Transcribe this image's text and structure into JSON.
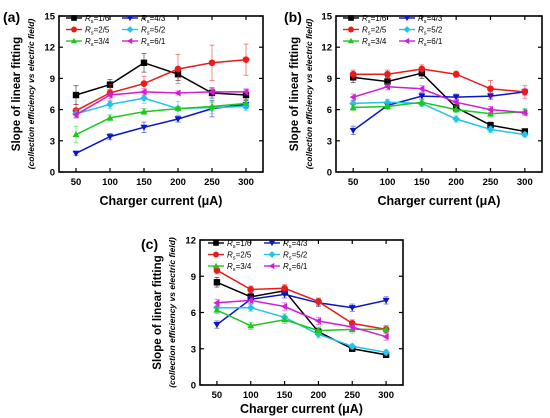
{
  "colors": {
    "Rs=1/6": "#000000",
    "Rs=4/3": "#0a14c8",
    "Rs=2/5": "#e81c1c",
    "Rs=5/2": "#22c4e8",
    "Rs=3/4": "#1ec81e",
    "Rs=6/1": "#d21ed2"
  },
  "markers": {
    "Rs=1/6": "square",
    "Rs=4/3": "triangle-down",
    "Rs=2/5": "circle",
    "Rs=5/2": "diamond",
    "Rs=3/4": "triangle-up",
    "Rs=6/1": "triangle-left"
  },
  "chart_data": [
    {
      "panel": "(a)",
      "type": "line",
      "xlabel": "Charger current (μA)",
      "ylabel": "Slope of linear fitting",
      "ylabel_sub": "(collection efficiency vs electric field)",
      "x": [
        50,
        100,
        150,
        200,
        250,
        300
      ],
      "xlim": [
        25,
        325
      ],
      "ylim": [
        0,
        15
      ],
      "yticks": [
        0,
        3,
        6,
        9,
        12,
        15
      ],
      "legend": [
        [
          "Rs=1/6",
          "Rs=4/3"
        ],
        [
          "Rs=2/5",
          "Rs=5/2"
        ],
        [
          "Rs=3/4",
          "Rs=6/1"
        ]
      ],
      "series": [
        {
          "name": "Rs=1/6",
          "values": [
            7.4,
            8.4,
            10.5,
            9.4,
            7.6,
            7.4
          ],
          "errors": [
            0.9,
            0.5,
            0.9,
            0.6,
            0.5,
            0.5
          ]
        },
        {
          "name": "Rs=4/3",
          "values": [
            1.8,
            3.4,
            4.3,
            5.1,
            6.1,
            6.5
          ],
          "errors": [
            0.2,
            0.3,
            0.5,
            0.3,
            0.8,
            0.4
          ]
        },
        {
          "name": "Rs=2/5",
          "values": [
            5.9,
            7.6,
            8.5,
            9.9,
            10.5,
            10.8
          ],
          "errors": [
            0.6,
            0.8,
            0.7,
            1.4,
            1.7,
            1.5
          ]
        },
        {
          "name": "Rs=5/2",
          "values": [
            5.6,
            6.5,
            7.1,
            6.1,
            6.2,
            6.3
          ],
          "errors": [
            0.4,
            0.4,
            0.5,
            0.7,
            0.6,
            0.4
          ]
        },
        {
          "name": "Rs=3/4",
          "values": [
            3.6,
            5.2,
            5.8,
            6.1,
            6.3,
            6.6
          ],
          "errors": [
            0.8,
            0.3,
            0.3,
            0.2,
            0.4,
            0.4
          ]
        },
        {
          "name": "Rs=6/1",
          "values": [
            5.5,
            7.4,
            7.7,
            7.6,
            7.7,
            7.7
          ],
          "errors": [
            0.3,
            0.3,
            0.3,
            0.2,
            0.3,
            0.3
          ]
        }
      ]
    },
    {
      "panel": "(b)",
      "type": "line",
      "xlabel": "Charger current (μA)",
      "ylabel": "Slope of linear fitting",
      "ylabel_sub": "(collection efficiency vs electric field)",
      "x": [
        50,
        100,
        150,
        200,
        250,
        300
      ],
      "xlim": [
        25,
        325
      ],
      "ylim": [
        0,
        15
      ],
      "yticks": [
        0,
        3,
        6,
        9,
        12,
        15
      ],
      "legend": [
        [
          "Rs=1/6",
          "Rs=4/3"
        ],
        [
          "Rs=2/5",
          "Rs=5/2"
        ],
        [
          "Rs=3/4",
          "Rs=6/1"
        ]
      ],
      "series": [
        {
          "name": "Rs=1/6",
          "values": [
            9.1,
            8.7,
            9.5,
            6.2,
            4.5,
            3.9
          ],
          "errors": [
            0.5,
            0.4,
            0.5,
            0.3,
            0.3,
            0.2
          ]
        },
        {
          "name": "Rs=4/3",
          "values": [
            4.0,
            6.4,
            7.3,
            7.2,
            7.3,
            7.7
          ],
          "errors": [
            0.4,
            0.3,
            0.3,
            0.3,
            0.3,
            0.3
          ]
        },
        {
          "name": "Rs=2/5",
          "values": [
            9.4,
            9.4,
            9.9,
            9.4,
            8.0,
            7.7
          ],
          "errors": [
            0.4,
            0.4,
            0.4,
            0.3,
            0.8,
            0.6
          ]
        },
        {
          "name": "Rs=5/2",
          "values": [
            6.6,
            6.7,
            6.6,
            5.1,
            4.1,
            3.6
          ],
          "errors": [
            0.3,
            0.3,
            0.3,
            0.3,
            0.3,
            0.2
          ]
        },
        {
          "name": "Rs=3/4",
          "values": [
            6.2,
            6.3,
            6.7,
            6.0,
            5.6,
            5.8
          ],
          "errors": [
            0.3,
            0.3,
            0.3,
            0.3,
            0.3,
            0.3
          ]
        },
        {
          "name": "Rs=6/1",
          "values": [
            7.2,
            8.2,
            8.0,
            6.7,
            6.0,
            5.7
          ],
          "errors": [
            0.3,
            0.3,
            0.3,
            0.3,
            0.3,
            0.3
          ]
        }
      ]
    },
    {
      "panel": "(c)",
      "type": "line",
      "xlabel": "Charger current (μA)",
      "ylabel": "Slope of linear fitting",
      "ylabel_sub": "(collection efficiency vs electric field)",
      "x": [
        50,
        100,
        150,
        200,
        250,
        300
      ],
      "xlim": [
        25,
        325
      ],
      "ylim": [
        0,
        12
      ],
      "yticks": [
        0,
        3,
        6,
        9,
        12
      ],
      "legend": [
        [
          "Rs=1/6",
          "Rs=4/3"
        ],
        [
          "Rs=2/5",
          "Rs=5/2"
        ],
        [
          "Rs=3/4",
          "Rs=6/1"
        ]
      ],
      "series": [
        {
          "name": "Rs=1/6",
          "values": [
            8.5,
            7.3,
            7.8,
            4.4,
            3.0,
            2.5
          ],
          "errors": [
            0.4,
            0.3,
            0.3,
            0.3,
            0.2,
            0.2
          ]
        },
        {
          "name": "Rs=4/3",
          "values": [
            5.0,
            7.1,
            7.5,
            6.8,
            6.4,
            7.0
          ],
          "errors": [
            0.3,
            0.3,
            0.3,
            0.3,
            0.3,
            0.3
          ]
        },
        {
          "name": "Rs=2/5",
          "values": [
            9.5,
            7.9,
            8.0,
            6.9,
            5.1,
            4.6
          ],
          "errors": [
            0.3,
            0.3,
            0.3,
            0.3,
            0.3,
            0.3
          ]
        },
        {
          "name": "Rs=5/2",
          "values": [
            6.4,
            6.4,
            5.6,
            4.2,
            3.2,
            2.7
          ],
          "errors": [
            0.3,
            0.3,
            0.3,
            0.3,
            0.2,
            0.2
          ]
        },
        {
          "name": "Rs=3/4",
          "values": [
            6.2,
            4.9,
            5.4,
            4.5,
            4.6,
            4.6
          ],
          "errors": [
            0.3,
            0.3,
            0.3,
            0.3,
            0.3,
            0.3
          ]
        },
        {
          "name": "Rs=6/1",
          "values": [
            6.8,
            7.0,
            6.5,
            5.3,
            4.8,
            4.0
          ],
          "errors": [
            0.3,
            0.3,
            0.3,
            0.3,
            0.3,
            0.3
          ]
        }
      ]
    }
  ]
}
